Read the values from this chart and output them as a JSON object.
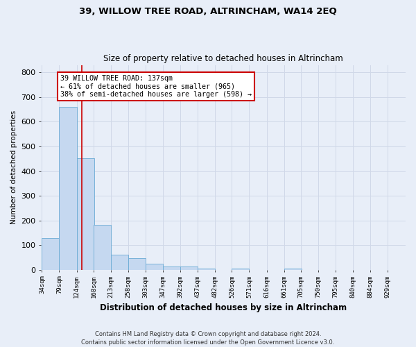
{
  "title": "39, WILLOW TREE ROAD, ALTRINCHAM, WA14 2EQ",
  "subtitle": "Size of property relative to detached houses in Altrincham",
  "xlabel": "Distribution of detached houses by size in Altrincham",
  "ylabel": "Number of detached properties",
  "bar_values": [
    130,
    660,
    453,
    183,
    60,
    48,
    26,
    13,
    13,
    6,
    0,
    5,
    0,
    0,
    5,
    0,
    0,
    0,
    0,
    0
  ],
  "bar_labels": [
    "34sqm",
    "79sqm",
    "124sqm",
    "168sqm",
    "213sqm",
    "258sqm",
    "303sqm",
    "347sqm",
    "392sqm",
    "437sqm",
    "482sqm",
    "526sqm",
    "571sqm",
    "616sqm",
    "661sqm",
    "705sqm",
    "750sqm",
    "795sqm",
    "840sqm",
    "884sqm",
    "929sqm"
  ],
  "bar_color": "#c5d8f0",
  "bar_edge_color": "#6aaad4",
  "marker_value": 137,
  "marker_line_color": "#cc0000",
  "annotation_line1": "39 WILLOW TREE ROAD: 137sqm",
  "annotation_line2": "← 61% of detached houses are smaller (965)",
  "annotation_line3": "38% of semi-detached houses are larger (598) →",
  "annotation_box_color": "#ffffff",
  "annotation_box_edge_color": "#cc0000",
  "ylim": [
    0,
    830
  ],
  "yticks": [
    0,
    100,
    200,
    300,
    400,
    500,
    600,
    700,
    800
  ],
  "grid_color": "#d0d8e8",
  "bg_color": "#e8eef8",
  "footer_text": "Contains HM Land Registry data © Crown copyright and database right 2024.\nContains public sector information licensed under the Open Government Licence v3.0.",
  "bin_width": 45
}
